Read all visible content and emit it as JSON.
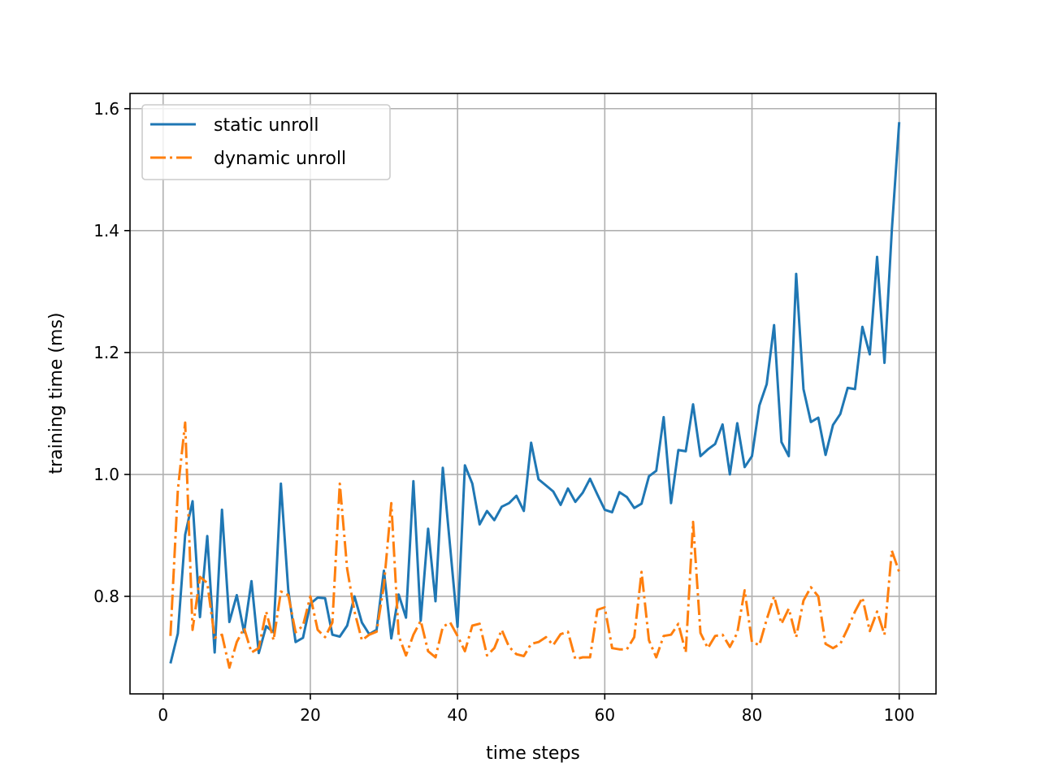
{
  "chart_data": {
    "type": "line",
    "xlabel": "time steps",
    "ylabel": "training time (ms)",
    "xlim": [
      -4.5,
      105
    ],
    "ylim": [
      0.64,
      1.625
    ],
    "xticks": [
      0,
      20,
      40,
      60,
      80,
      100
    ],
    "xtick_labels": [
      "0",
      "20",
      "40",
      "60",
      "80",
      "100"
    ],
    "yticks": [
      0.8,
      1.0,
      1.2,
      1.4,
      1.6
    ],
    "ytick_labels": [
      "0.8",
      "1.0",
      "1.2",
      "1.4",
      "1.6"
    ],
    "grid": true,
    "legend_position": "top-left",
    "series": [
      {
        "name": "static unroll",
        "color": "#1f77b4",
        "style": "solid",
        "x": [
          1,
          2,
          3,
          4,
          5,
          6,
          7,
          8,
          9,
          10,
          11,
          12,
          13,
          14,
          15,
          16,
          17,
          18,
          19,
          20,
          21,
          22,
          23,
          24,
          25,
          26,
          27,
          28,
          29,
          30,
          31,
          32,
          33,
          34,
          35,
          36,
          37,
          38,
          39,
          40,
          41,
          42,
          43,
          44,
          45,
          46,
          47,
          48,
          49,
          50,
          51,
          52,
          53,
          54,
          55,
          56,
          57,
          58,
          59,
          60,
          61,
          62,
          63,
          64,
          65,
          66,
          67,
          68,
          69,
          70,
          71,
          72,
          73,
          74,
          75,
          76,
          77,
          78,
          79,
          80,
          81,
          82,
          83,
          84,
          85,
          86,
          87,
          88,
          89,
          90,
          91,
          92,
          93,
          94,
          95,
          96,
          97,
          98,
          99,
          100
        ],
        "values": [
          0.69,
          0.739,
          0.901,
          0.956,
          0.766,
          0.899,
          0.708,
          0.942,
          0.758,
          0.802,
          0.741,
          0.825,
          0.707,
          0.751,
          0.741,
          0.985,
          0.81,
          0.725,
          0.732,
          0.788,
          0.798,
          0.797,
          0.737,
          0.734,
          0.752,
          0.8,
          0.757,
          0.738,
          0.745,
          0.842,
          0.731,
          0.803,
          0.765,
          0.989,
          0.76,
          0.911,
          0.792,
          1.011,
          0.88,
          0.75,
          1.015,
          0.985,
          0.918,
          0.94,
          0.925,
          0.947,
          0.953,
          0.965,
          0.94,
          1.052,
          0.992,
          0.982,
          0.972,
          0.95,
          0.977,
          0.955,
          0.97,
          0.993,
          0.967,
          0.942,
          0.938,
          0.971,
          0.963,
          0.945,
          0.952,
          0.997,
          1.006,
          1.094,
          0.953,
          1.04,
          1.038,
          1.115,
          1.03,
          1.041,
          1.05,
          1.082,
          1.0,
          1.084,
          1.012,
          1.03,
          1.113,
          1.148,
          1.245,
          1.053,
          1.03,
          1.329,
          1.14,
          1.086,
          1.093,
          1.032,
          1.081,
          1.099,
          1.142,
          1.14,
          1.242,
          1.197,
          1.357,
          1.183,
          1.4,
          1.578
        ]
      },
      {
        "name": "dynamic unroll",
        "color": "#ff7f0e",
        "style": "dashdot",
        "x": [
          1,
          2,
          3,
          4,
          5,
          6,
          7,
          8,
          9,
          10,
          11,
          12,
          13,
          14,
          15,
          16,
          17,
          18,
          19,
          20,
          21,
          22,
          23,
          24,
          25,
          26,
          27,
          28,
          29,
          30,
          31,
          32,
          33,
          34,
          35,
          36,
          37,
          38,
          39,
          40,
          41,
          42,
          43,
          44,
          45,
          46,
          47,
          48,
          49,
          50,
          51,
          52,
          53,
          54,
          55,
          56,
          57,
          58,
          59,
          60,
          61,
          62,
          63,
          64,
          65,
          66,
          67,
          68,
          69,
          70,
          71,
          72,
          73,
          74,
          75,
          76,
          77,
          78,
          79,
          80,
          81,
          82,
          83,
          84,
          85,
          86,
          87,
          88,
          89,
          90,
          91,
          92,
          93,
          94,
          95,
          96,
          97,
          98,
          99,
          100
        ],
        "values": [
          0.735,
          0.975,
          1.085,
          0.745,
          0.832,
          0.822,
          0.732,
          0.737,
          0.683,
          0.725,
          0.748,
          0.708,
          0.715,
          0.775,
          0.728,
          0.808,
          0.802,
          0.741,
          0.752,
          0.8,
          0.745,
          0.733,
          0.757,
          0.985,
          0.845,
          0.775,
          0.728,
          0.737,
          0.742,
          0.818,
          0.953,
          0.735,
          0.703,
          0.737,
          0.76,
          0.71,
          0.7,
          0.75,
          0.757,
          0.735,
          0.71,
          0.752,
          0.755,
          0.703,
          0.715,
          0.745,
          0.717,
          0.705,
          0.702,
          0.722,
          0.725,
          0.733,
          0.72,
          0.738,
          0.742,
          0.697,
          0.7,
          0.7,
          0.778,
          0.782,
          0.715,
          0.713,
          0.713,
          0.733,
          0.84,
          0.728,
          0.7,
          0.735,
          0.737,
          0.755,
          0.708,
          0.922,
          0.74,
          0.715,
          0.735,
          0.737,
          0.717,
          0.74,
          0.81,
          0.725,
          0.72,
          0.762,
          0.8,
          0.755,
          0.78,
          0.733,
          0.793,
          0.815,
          0.8,
          0.722,
          0.715,
          0.722,
          0.747,
          0.775,
          0.798,
          0.743,
          0.775,
          0.737,
          0.875,
          0.84
        ]
      }
    ]
  }
}
